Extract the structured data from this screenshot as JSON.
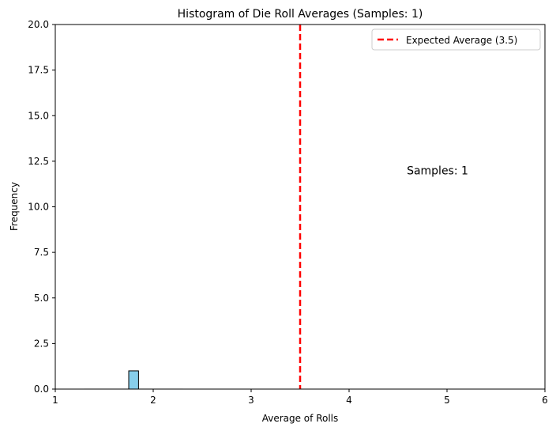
{
  "chart_data": {
    "type": "bar",
    "title": "Histogram of Die Roll Averages (Samples: 1)",
    "xlabel": "Average of Rolls",
    "ylabel": "Frequency",
    "xlim": [
      1,
      6
    ],
    "ylim": [
      0,
      20
    ],
    "x_ticks": [
      "1",
      "2",
      "3",
      "4",
      "5",
      "6"
    ],
    "y_ticks": [
      "0.0",
      "2.5",
      "5.0",
      "7.5",
      "10.0",
      "12.5",
      "15.0",
      "17.5",
      "20.0"
    ],
    "grid": false,
    "bins": [
      {
        "x0": 1.3,
        "x1": 1.75,
        "count": 0
      },
      {
        "x0": 1.75,
        "x1": 1.85,
        "count": 1
      },
      {
        "x0": 1.85,
        "x1": 2.3,
        "count": 0
      }
    ],
    "reference_line": {
      "x": 3.5,
      "label": "Expected Average (3.5)",
      "color": "#ff0000",
      "style": "dashed"
    },
    "annotation": {
      "text": "Samples: 1",
      "x": 4.5,
      "y": 12
    },
    "legend": {
      "placement": "top-right",
      "entries": [
        "Expected Average (3.5)"
      ]
    },
    "colors": {
      "bar_fill": "#87ceeb",
      "bar_edge": "#000000",
      "line": "#ff0000"
    }
  }
}
